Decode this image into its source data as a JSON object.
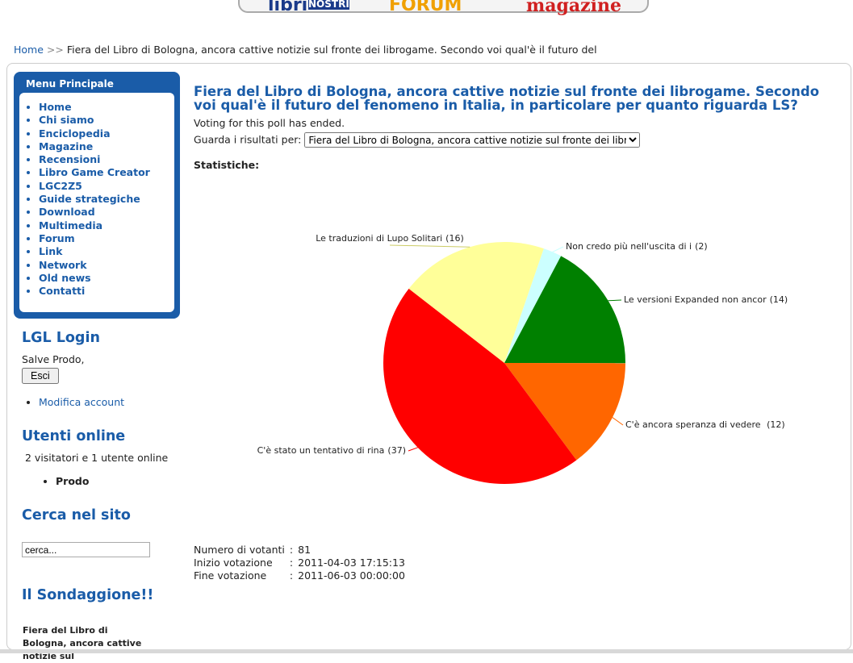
{
  "header": {
    "banner": [
      "libri",
      "NOSTRI",
      "FORUM",
      "magazine"
    ]
  },
  "breadcrumb": {
    "home": "Home",
    "separator": ">>",
    "current": "Fiera del Libro di Bologna, ancora cattive notizie sul fronte dei librogame. Secondo voi qual'è il futuro del"
  },
  "sidebar": {
    "menu": {
      "title": "Menu Principale",
      "items": [
        "Home",
        "Chi siamo",
        "Enciclopedia",
        "Magazine",
        "Recensioni",
        "Libro Game Creator",
        "LGC2Z5",
        "Guide strategiche",
        "Download",
        "Multimedia",
        "Forum",
        "Link",
        "Network",
        "Old news",
        "Contatti"
      ]
    },
    "login": {
      "title": "LGL Login",
      "greeting": "Salve Prodo,",
      "button": "Esci",
      "link": "Modifica account"
    },
    "online": {
      "title": "Utenti online",
      "summary": "2 visitatori e 1 utente online",
      "users": [
        "Prodo"
      ]
    },
    "search": {
      "title": "Cerca nel sito",
      "placeholder": "cerca..."
    },
    "poll": {
      "title": "Il Sondaggione!!",
      "question": "Fiera del Libro di Bologna, ancora cattive notizie sul"
    }
  },
  "content": {
    "title": "Fiera del Libro di Bologna, ancora cattive notizie sul fronte dei librogame. Secondo voi qual'è il futuro del fenomeno in Italia, in particolare per quanto riguarda LS?",
    "status": "Voting for this poll has ended.",
    "select_label": "Guarda i risultati per:",
    "select_value": "Fiera del Libro di Bologna, ancora cattive notizie sul fronte dei librogame",
    "stats_heading": "Statistiche:",
    "separator": ":",
    "details": [
      {
        "label": "Numero di votanti",
        "value": "81"
      },
      {
        "label": "Inizio votazione",
        "value": "2011-04-03 17:15:13"
      },
      {
        "label": "Fine votazione",
        "value": "2011-06-03 00:00:00"
      }
    ]
  },
  "chart_data": {
    "type": "pie",
    "categories": [
      "Non credo più nell'uscita di i",
      "Le versioni Expanded non ancor",
      "C'è ancora speranza di vedere ",
      "C'è stato un tentativo di rina",
      "Le traduzioni di Lupo Solitari"
    ],
    "values": [
      2,
      14,
      12,
      37,
      16
    ],
    "value_labels": [
      "(2)",
      "(14)",
      "(12)",
      "(37)",
      "(16)"
    ],
    "colors": [
      "#ccffff",
      "#008000",
      "#ff6600",
      "#ff0000",
      "#ffff99"
    ]
  }
}
